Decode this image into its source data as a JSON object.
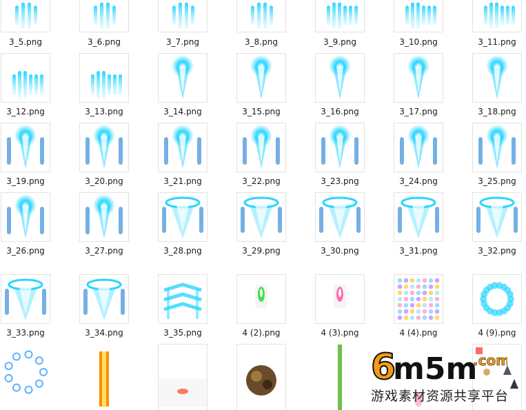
{
  "explorer": {
    "files": [
      {
        "name": "3_5.png",
        "icon": "thruster-effect-icon"
      },
      {
        "name": "3_6.png",
        "icon": "thruster-effect-icon"
      },
      {
        "name": "3_7.png",
        "icon": "thruster-effect-icon"
      },
      {
        "name": "3_8.png",
        "icon": "thruster-effect-icon"
      },
      {
        "name": "3_9.png",
        "icon": "thruster-effect-icon"
      },
      {
        "name": "3_10.png",
        "icon": "thruster-effect-icon"
      },
      {
        "name": "3_11.png",
        "icon": "thruster-effect-icon"
      },
      {
        "name": "3_12.png",
        "icon": "thruster-effect-icon"
      },
      {
        "name": "3_13.png",
        "icon": "thruster-effect-icon"
      },
      {
        "name": "3_14.png",
        "icon": "flame-effect-icon"
      },
      {
        "name": "3_15.png",
        "icon": "flame-effect-icon"
      },
      {
        "name": "3_16.png",
        "icon": "flame-effect-icon"
      },
      {
        "name": "3_17.png",
        "icon": "flame-effect-icon"
      },
      {
        "name": "3_18.png",
        "icon": "flame-effect-icon"
      },
      {
        "name": "3_19.png",
        "icon": "flame-effect-icon"
      },
      {
        "name": "3_20.png",
        "icon": "flame-effect-icon"
      },
      {
        "name": "3_21.png",
        "icon": "flame-effect-icon"
      },
      {
        "name": "3_22.png",
        "icon": "flame-effect-icon"
      },
      {
        "name": "3_23.png",
        "icon": "flame-effect-icon"
      },
      {
        "name": "3_24.png",
        "icon": "flame-effect-icon"
      },
      {
        "name": "3_25.png",
        "icon": "flame-effect-icon"
      },
      {
        "name": "3_26.png",
        "icon": "flame-effect-icon"
      },
      {
        "name": "3_27.png",
        "icon": "flame-effect-icon"
      },
      {
        "name": "3_28.png",
        "icon": "ring-effect-icon"
      },
      {
        "name": "3_29.png",
        "icon": "ring-effect-icon"
      },
      {
        "name": "3_30.png",
        "icon": "ring-effect-icon"
      },
      {
        "name": "3_31.png",
        "icon": "ring-effect-icon"
      },
      {
        "name": "3_32.png",
        "icon": "ring-effect-icon"
      },
      {
        "name": "3_33.png",
        "icon": "ring-effect-icon"
      },
      {
        "name": "3_34.png",
        "icon": "ring-effect-icon"
      },
      {
        "name": "3_35.png",
        "icon": "chevron-effect-icon"
      },
      {
        "name": "4 (2).png",
        "icon": "green-bullet-icon"
      },
      {
        "name": "4 (3).png",
        "icon": "pink-bullet-icon"
      },
      {
        "name": "4 (4).png",
        "icon": "sprite-sheet-icon"
      },
      {
        "name": "4 (9).png",
        "icon": "blue-ring-burst-icon"
      },
      {
        "name": "",
        "icon": "circle-ring-icon"
      },
      {
        "name": "",
        "icon": "orange-laser-icon"
      },
      {
        "name": "",
        "icon": "red-glow-icon"
      },
      {
        "name": "",
        "icon": "explosion-icon"
      },
      {
        "name": "",
        "icon": "green-beam-icon"
      },
      {
        "name": "",
        "icon": "pink-glow-icon"
      },
      {
        "name": "",
        "icon": "ship-sprites-icon"
      }
    ]
  },
  "watermark": {
    "logo_text": "6m5m",
    "logo_suffix": ".com",
    "subtitle": "游戏素材资源共享平台",
    "colors": {
      "orange": "#f39c12",
      "dark": "#111111"
    }
  },
  "colors": {
    "cyan": "#29d6ff",
    "cyan_light": "#bff4ff",
    "blue": "#3a8fd8"
  }
}
